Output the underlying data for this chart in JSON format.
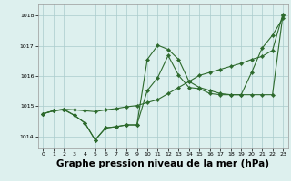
{
  "background_color": "#ddf0ee",
  "grid_color": "#aacccc",
  "line_color": "#2d6a2d",
  "xlabel": "Graphe pression niveau de la mer (hPa)",
  "xlabel_fontsize": 7.5,
  "ylim": [
    1013.6,
    1018.4
  ],
  "xlim": [
    -0.5,
    23.5
  ],
  "yticks": [
    1014,
    1015,
    1016,
    1017,
    1018
  ],
  "xticks": [
    0,
    1,
    2,
    3,
    4,
    5,
    6,
    7,
    8,
    9,
    10,
    11,
    12,
    13,
    14,
    15,
    16,
    17,
    18,
    19,
    20,
    21,
    22,
    23
  ],
  "series1_x": [
    0,
    1,
    2,
    3,
    4,
    5,
    6,
    7,
    8,
    9,
    10,
    11,
    12,
    13,
    14,
    15,
    16,
    17,
    18,
    19,
    20,
    21,
    22,
    23
  ],
  "series1_y": [
    1014.75,
    1014.85,
    1014.9,
    1014.88,
    1014.85,
    1014.82,
    1014.88,
    1014.92,
    1014.98,
    1015.02,
    1015.12,
    1015.22,
    1015.42,
    1015.62,
    1015.82,
    1016.02,
    1016.12,
    1016.22,
    1016.32,
    1016.42,
    1016.55,
    1016.65,
    1016.85,
    1018.05
  ],
  "series2_x": [
    0,
    1,
    2,
    3,
    4,
    5,
    6,
    7,
    8,
    9,
    10,
    11,
    12,
    13,
    14,
    15,
    16,
    17,
    18,
    19,
    20,
    21,
    22,
    23
  ],
  "series2_y": [
    1014.75,
    1014.85,
    1014.9,
    1014.7,
    1014.45,
    1013.88,
    1014.28,
    1014.32,
    1014.38,
    1014.38,
    1016.55,
    1017.02,
    1016.88,
    1016.55,
    1015.82,
    1015.62,
    1015.52,
    1015.42,
    1015.38,
    1015.38,
    1016.12,
    1016.92,
    1017.35,
    1017.92
  ],
  "series3_x": [
    0,
    1,
    2,
    3,
    4,
    5,
    6,
    7,
    8,
    9,
    10,
    11,
    12,
    13,
    14,
    15,
    16,
    17,
    18,
    19,
    20,
    21,
    22,
    23
  ],
  "series3_y": [
    1014.75,
    1014.85,
    1014.88,
    1014.7,
    1014.45,
    1013.88,
    1014.28,
    1014.32,
    1014.38,
    1014.38,
    1015.52,
    1015.95,
    1016.68,
    1016.02,
    1015.62,
    1015.58,
    1015.42,
    1015.38,
    1015.38,
    1015.38,
    1015.38,
    1015.38,
    1015.38,
    1018.02
  ]
}
